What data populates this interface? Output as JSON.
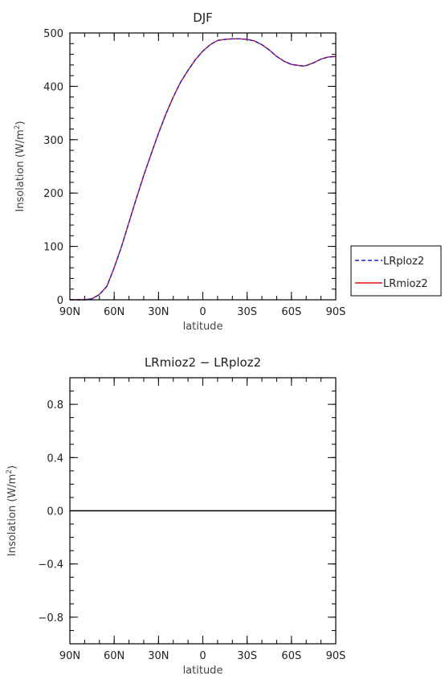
{
  "chart_data": [
    {
      "type": "line",
      "title": "DJF",
      "xlabel": "latitude",
      "ylabel_main": "Insolation (W/m",
      "ylabel_sup": "2",
      "ylabel_close": ")",
      "xlim": [
        90,
        -90
      ],
      "ylim": [
        0,
        500
      ],
      "x_ticks": [
        90,
        60,
        30,
        0,
        -30,
        -60,
        -90
      ],
      "x_tick_labels": [
        "90N",
        "60N",
        "30N",
        "0",
        "30S",
        "60S",
        "90S"
      ],
      "y_ticks": [
        0,
        100,
        200,
        300,
        400,
        500
      ],
      "y_tick_labels": [
        "0",
        "100",
        "200",
        "300",
        "400",
        "500"
      ],
      "x": [
        90,
        80,
        75,
        70,
        65,
        60,
        55,
        50,
        45,
        40,
        35,
        30,
        25,
        20,
        15,
        10,
        5,
        0,
        -5,
        -10,
        -15,
        -20,
        -25,
        -30,
        -35,
        -40,
        -45,
        -50,
        -55,
        -60,
        -65,
        -68,
        -70,
        -75,
        -80,
        -85,
        -90
      ],
      "series": [
        {
          "name": "LRploz2",
          "color": "#1f1fd0",
          "dash": "dashed",
          "values": [
            0,
            0,
            2,
            10,
            25,
            60,
            100,
            145,
            190,
            233,
            273,
            312,
            348,
            380,
            408,
            430,
            450,
            466,
            478,
            486,
            488,
            489,
            489,
            488,
            485,
            478,
            468,
            456,
            447,
            441,
            439,
            438,
            439,
            444,
            451,
            455,
            456
          ]
        },
        {
          "name": "LRmioz2",
          "color": "#e01010",
          "dash": "solid",
          "values": [
            0,
            0,
            2,
            10,
            25,
            60,
            100,
            145,
            190,
            233,
            273,
            312,
            348,
            380,
            408,
            430,
            450,
            466,
            478,
            486,
            488,
            489,
            489,
            488,
            485,
            478,
            468,
            456,
            447,
            441,
            439,
            438,
            439,
            444,
            451,
            455,
            456
          ]
        }
      ],
      "legend": "right"
    },
    {
      "type": "line",
      "title": "LRmioz2 − LRploz2",
      "xlabel": "latitude",
      "ylabel_main": "Insolation (W/m",
      "ylabel_sup": "2",
      "ylabel_close": ")",
      "xlim": [
        90,
        -90
      ],
      "ylim": [
        -1,
        1
      ],
      "x_ticks": [
        90,
        60,
        30,
        0,
        -30,
        -60,
        -90
      ],
      "x_tick_labels": [
        "90N",
        "60N",
        "30N",
        "0",
        "30S",
        "60S",
        "90S"
      ],
      "y_ticks": [
        -0.8,
        -0.4,
        0.0,
        0.4,
        0.8
      ],
      "y_tick_labels": [
        "−0.8",
        "−0.4",
        "0.0",
        "0.4",
        "0.8"
      ],
      "x": [
        90,
        -90
      ],
      "series": [
        {
          "values": [
            0,
            0
          ],
          "color": "#000000",
          "dash": "solid"
        }
      ]
    }
  ]
}
